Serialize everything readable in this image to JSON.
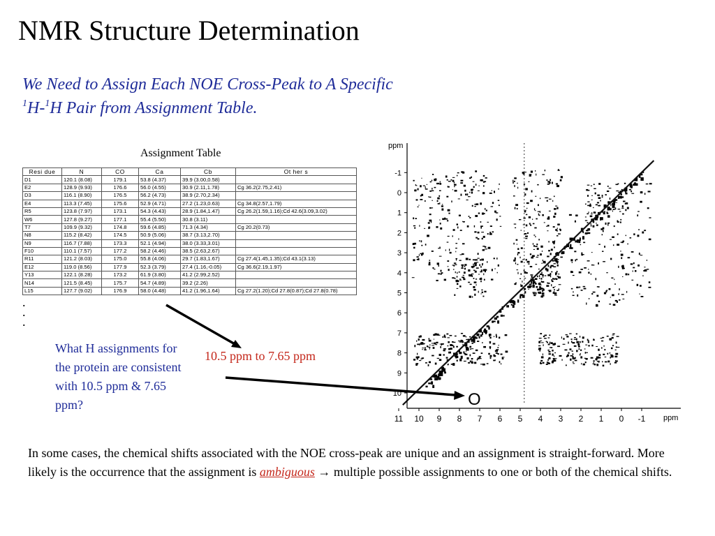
{
  "slide": {
    "title": "NMR Structure Determination",
    "subtitle_line1": "We Need to Assign Each NOE Cross-Peak to A Specific",
    "subtitle_sup": "1",
    "subtitle_h1": "H-",
    "subtitle_sup2": "1",
    "subtitle_rest": "H Pair from Assignment Table.",
    "table_caption": "Assignment Table",
    "table": {
      "headers": [
        "Resi due",
        "N",
        "CO",
        "Ca",
        "Cb",
        "Ot her s"
      ],
      "rows": [
        [
          "D1",
          "120.1 (8.08)",
          "179.1",
          "53.8 (4.37)",
          "39.9 (3.00,0.58)",
          ""
        ],
        [
          "E2",
          "128.9 (9.93)",
          "176.6",
          "56.0 (4.55)",
          "30.9 (2.11,1.78)",
          "Cg 36.2(2.75,2.41)"
        ],
        [
          "D3",
          "116.1 (8.90)",
          "176.5",
          "56.2 (4.73)",
          "38.9 (2.70,2.34)",
          ""
        ],
        [
          "E4",
          "113.3 (7.45)",
          "175.6",
          "52.9 (4.71)",
          "27.2 (1.23,0.63)",
          "Cg 34.8(2.57,1.79)"
        ],
        [
          "R5",
          "123.8 (7.97)",
          "173.1",
          "54.3 (4.43)",
          "28.9 (1.84,1.47)",
          "Cg 26.2(1.59,1.16);Cd 42.6(3.09,3.02)"
        ],
        [
          "W6",
          "127.8 (9.27)",
          "177.1",
          "55.4 (5.50)",
          "30.8 (3.11)",
          ""
        ],
        [
          "T7",
          "109.9 (9.32)",
          "174.8",
          "59.6 (4.85)",
          "71.3 (4.34)",
          "Cg 20.2(0.73)"
        ],
        [
          "N8",
          "115.2 (8.42)",
          "174.5",
          "50.9 (5.06)",
          "38.7 (3.13,2.70)",
          ""
        ],
        [
          "N9",
          "116.7 (7.88)",
          "173.3",
          "52.1 (4.94)",
          "38.0 (3.33,3.01)",
          ""
        ],
        [
          "F10",
          "110.1 (7.57)",
          "177.2",
          "58.2 (4.46)",
          "38.5 (2.63,2.67)",
          ""
        ],
        [
          "R11",
          "121.2 (8.03)",
          "175.0",
          "55.8 (4.06)",
          "29.7 (1.83,1.67)",
          "Cg 27.4(1.45,1.35);Cd 43.1(3.13)"
        ],
        [
          "E12",
          "119.0 (8.56)",
          "177.9",
          "52.3 (3.79)",
          "27.4 (1.16,-0.05)",
          "Cg 36.6(2.19,1.97)"
        ],
        [
          "Y13",
          "122.1 (8.28)",
          "173.2",
          "61.9 (3.80)",
          "41.2 (2.99,2.52)",
          ""
        ],
        [
          "N14",
          "121.5 (8.45)",
          "175.7",
          "54.7 (4.89)",
          "39.2 (2.26)",
          ""
        ],
        [
          "L15",
          "127.7 (9.02)",
          "176.9",
          "58.0 (4.48)",
          "41.2 (1.96,1.64)",
          "Cg 27.2(1.20);Cd 27.8(0.87);Cd 27.8(0.78)"
        ]
      ]
    },
    "dots": [
      ".",
      ".",
      "."
    ],
    "question": "What H assignments for the protein are consistent with 10.5 ppm & 7.65 ppm?",
    "range_label": "10.5 ppm to 7.65 ppm",
    "circle_marker": "O",
    "bottom_part1": "In some cases, the chemical shifts associated with the NOE cross-peak are unique and an assignment is straight-forward. More likely is the occurrence that the assignment is ",
    "bottom_ambiguous": "ambiguous",
    "bottom_arrow": "→",
    "bottom_part2": " multiple possible assignments to one or both of the chemical shifts."
  },
  "spectrum": {
    "y_axis_unit": "ppm",
    "x_axis_unit": "ppm",
    "y_ticks": [
      "-1",
      "0",
      "1",
      "2",
      "3",
      "4",
      "5",
      "6",
      "7",
      "8",
      "9",
      "10"
    ],
    "x_ticks": [
      "11",
      "10",
      "9",
      "8",
      "7",
      "6",
      "5",
      "4",
      "3",
      "2",
      "1",
      "0",
      "-1"
    ],
    "ppm_range": [
      -1.5,
      11
    ]
  },
  "colors": {
    "subtitle": "#1f2c99",
    "question": "#1f2c99",
    "accent_red": "#c4281c",
    "text": "#000000"
  }
}
